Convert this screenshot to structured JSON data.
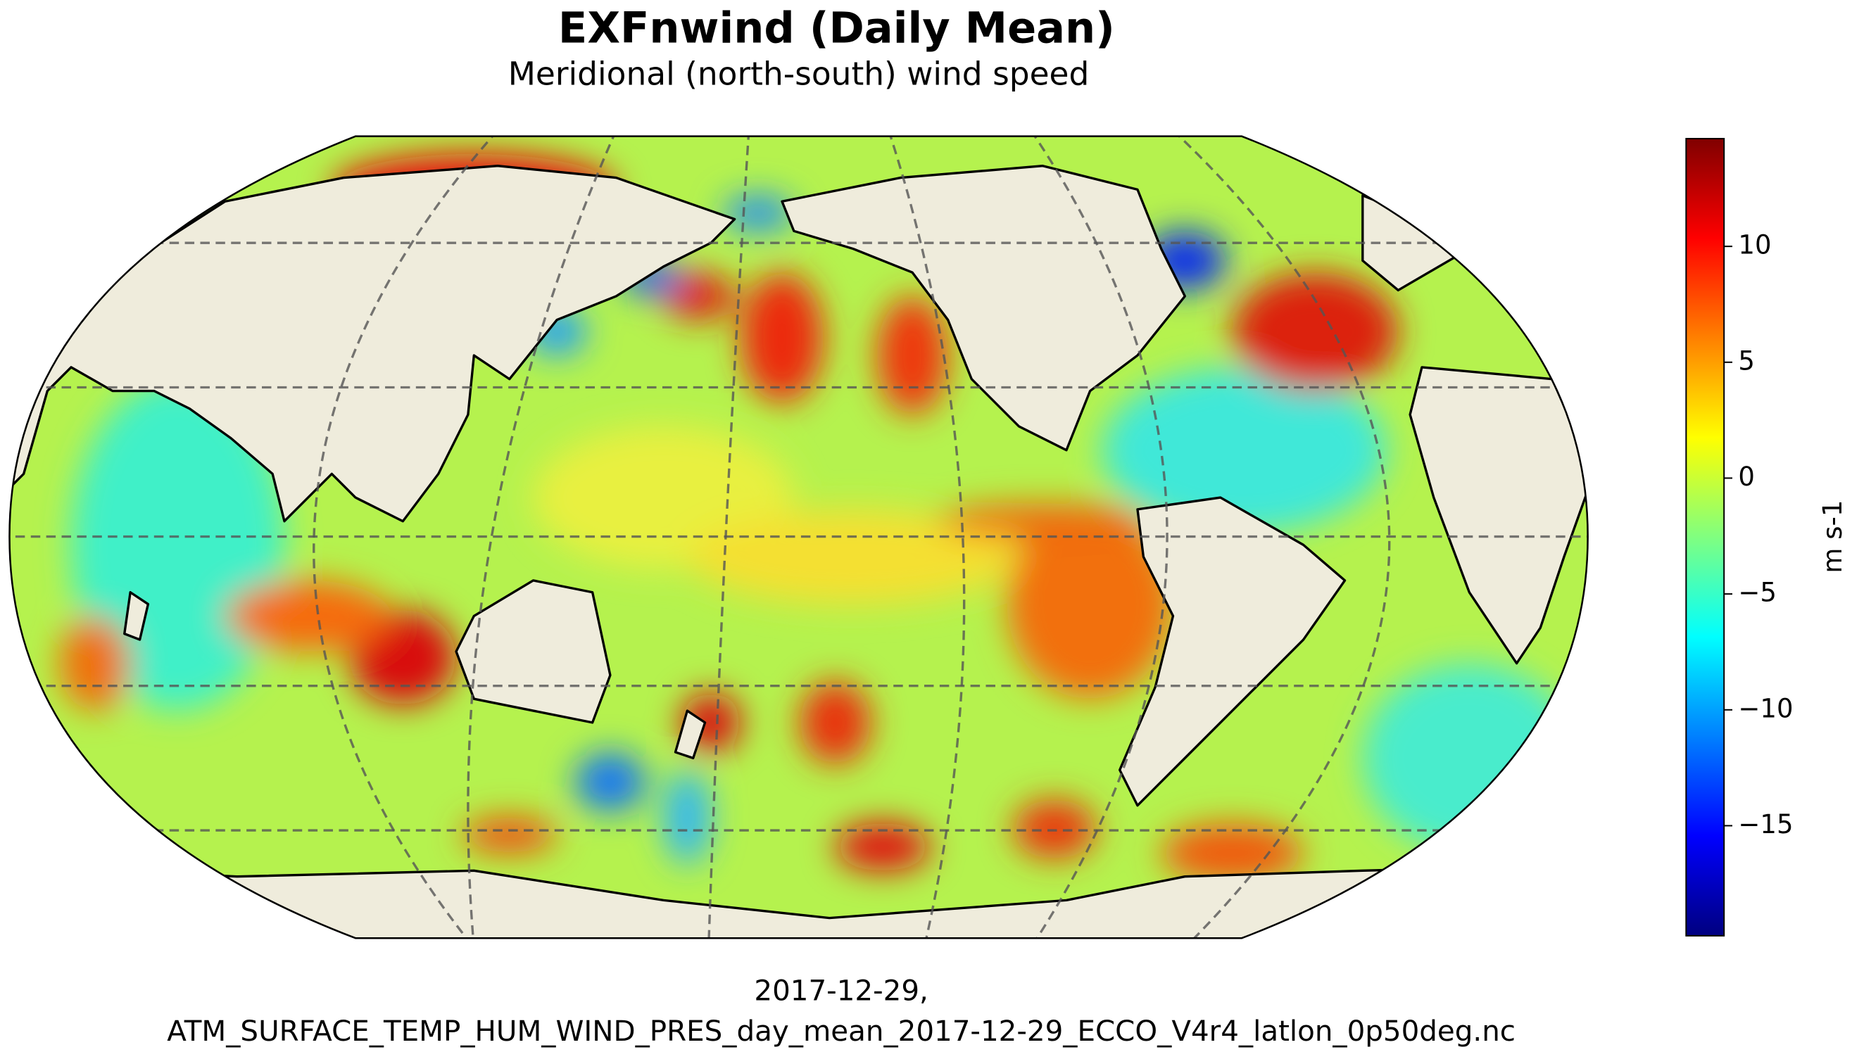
{
  "title": "EXFnwind (Daily Mean)",
  "subtitle": "Meridional (north-south) wind speed",
  "colorbar": {
    "label": "m s-1",
    "colormap": "jet",
    "lim": [
      -19.75,
      14.65
    ],
    "ticks": [
      10,
      5,
      0,
      {
        "value": -5,
        "label": "−5"
      },
      {
        "value": -10,
        "label": "−10"
      },
      {
        "value": -15,
        "label": "−15"
      }
    ]
  },
  "footer": [
    "2017-12-29,",
    "ATM_SURFACE_TEMP_HUM_WIND_PRES_day_mean_2017-12-29_ECCO_V4r4_latlon_0p50deg.nc"
  ]
}
